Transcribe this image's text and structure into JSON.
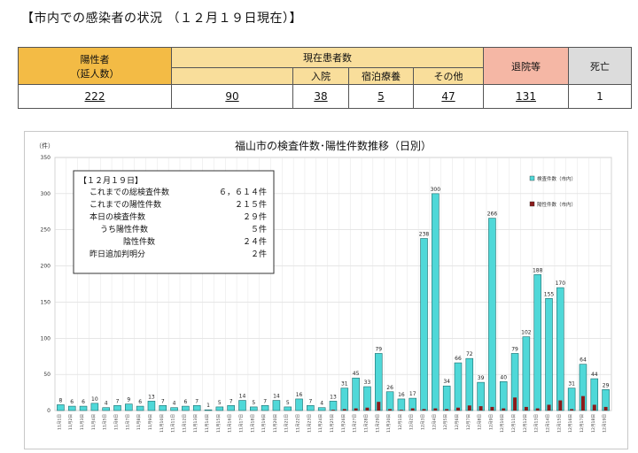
{
  "heading": "【市内での感染者の状況 （１２月１９日現在）】",
  "summary": {
    "headers": {
      "positive": "陽性者",
      "positive_sub": "（延人数）",
      "current": "現在患者数",
      "hospital": "入院",
      "hotel": "宿泊療養",
      "other": "その他",
      "discharged": "退院等",
      "death": "死亡"
    },
    "values": {
      "positive": "222",
      "current": "90",
      "hospital": "38",
      "hotel": "5",
      "other": "47",
      "discharged": "131",
      "death": "1"
    },
    "colors": {
      "positive": "#f3bb45",
      "current": "#f9de9b",
      "discharged": "#f5b7a5",
      "death": "#dcdcdc"
    }
  },
  "note": {
    "title": "【１２月１９日】",
    "rows": [
      {
        "label": "これまでの総検査件数",
        "value": "６，６１４件"
      },
      {
        "label": "これまでの陽性件数",
        "value": "２１５件"
      },
      {
        "label": "本日の検査件数",
        "value": "２９件"
      },
      {
        "label": "うち陽性件数",
        "value": "５件"
      },
      {
        "label": "陰性件数",
        "value": "２４件"
      },
      {
        "label": "昨日追加判明分",
        "value": "２件"
      }
    ]
  },
  "chart_data": {
    "type": "bar",
    "title": "福山市の検査件数･陽性件数推移（日別）",
    "ylabel": "（件）",
    "ylim": [
      0,
      350
    ],
    "yticks": [
      0,
      50,
      100,
      150,
      200,
      250,
      300,
      350
    ],
    "grid": true,
    "legend_position": "top-right",
    "categories": [
      "11月1日",
      "11月2日",
      "11月3日",
      "11月4日",
      "11月5日",
      "11月6日",
      "11月7日",
      "11月8日",
      "11月9日",
      "11月10日",
      "11月11日",
      "11月12日",
      "11月13日",
      "11月14日",
      "11月15日",
      "11月16日",
      "11月17日",
      "11月18日",
      "11月19日",
      "11月20日",
      "11月21日",
      "11月22日",
      "11月23日",
      "11月24日",
      "11月25日",
      "11月26日",
      "11月27日",
      "11月28日",
      "11月29日",
      "11月30日",
      "12月1日",
      "12月2日",
      "12月3日",
      "12月4日",
      "12月5日",
      "12月6日",
      "12月7日",
      "12月8日",
      "12月9日",
      "12月10日",
      "12月11日",
      "12月12日",
      "12月13日",
      "12月14日",
      "12月15日",
      "12月16日",
      "12月17日",
      "12月18日",
      "12月19日"
    ],
    "series": [
      {
        "name": "検査件数（市内）",
        "color": "#4fd8d8",
        "values": [
          8,
          6,
          6,
          10,
          4,
          7,
          9,
          6,
          13,
          7,
          4,
          6,
          7,
          1,
          5,
          7,
          14,
          5,
          7,
          14,
          5,
          16,
          7,
          4,
          13,
          31,
          45,
          33,
          79,
          26,
          16,
          17,
          238,
          300,
          34,
          66,
          72,
          39,
          266,
          40,
          79,
          102,
          188,
          155,
          170,
          31,
          64,
          44,
          29
        ]
      },
      {
        "name": "陽性件数（市内）",
        "color": "#8b1a1a",
        "values": [
          0,
          0,
          0,
          0,
          0,
          0,
          0,
          0,
          0,
          0,
          0,
          0,
          0,
          0,
          0,
          0,
          0,
          0,
          0,
          0,
          0,
          0,
          0,
          0,
          1,
          2,
          3,
          4,
          12,
          2,
          1,
          3,
          2,
          3,
          2,
          4,
          7,
          6,
          5,
          3,
          18,
          5,
          3,
          8,
          14,
          2,
          20,
          8,
          5
        ]
      }
    ]
  }
}
